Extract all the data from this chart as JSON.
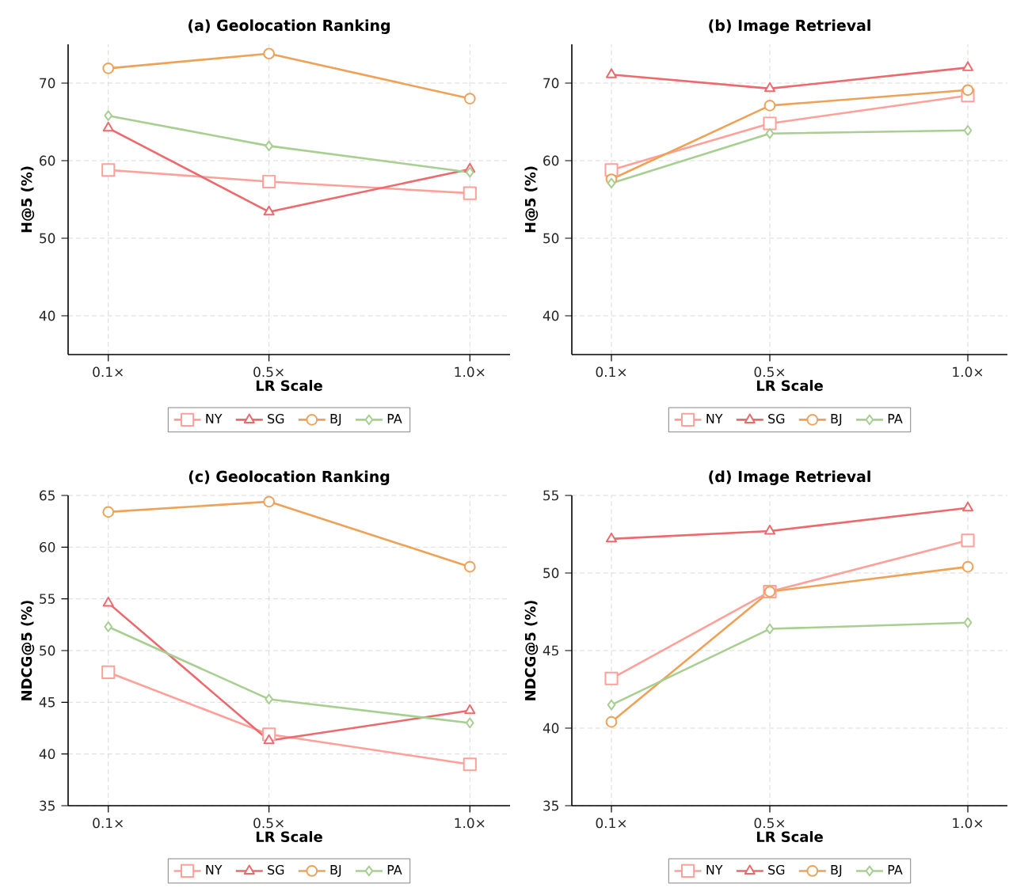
{
  "chart_data": [
    {
      "type": "line",
      "title": "(a) Geolocation Ranking",
      "xlabel": "LR Scale",
      "ylabel": "H@5 (%)",
      "x": [
        0.1,
        0.5,
        1.0
      ],
      "xlim": [
        0,
        1.1
      ],
      "xticks": [
        {
          "value": 0.1,
          "label": "0.1×"
        },
        {
          "value": 0.5,
          "label": "0.5×"
        },
        {
          "value": 1.0,
          "label": "1.0×"
        }
      ],
      "ylim": [
        35,
        75
      ],
      "yticks": [
        40,
        50,
        60,
        70
      ],
      "grid": true,
      "legend": "bottom",
      "series": [
        {
          "name": "NY",
          "color": "#ffa09a",
          "marker": "square",
          "values": [
            58.8,
            57.3,
            55.8
          ]
        },
        {
          "name": "SG",
          "color": "#ec6a6e",
          "marker": "triangle",
          "values": [
            64.2,
            53.4,
            58.9
          ]
        },
        {
          "name": "BJ",
          "color": "#eea257",
          "marker": "circle",
          "values": [
            71.9,
            73.8,
            68.0
          ]
        },
        {
          "name": "PA",
          "color": "#a8cf92",
          "marker": "diamond",
          "values": [
            65.8,
            61.9,
            58.5
          ]
        }
      ]
    },
    {
      "type": "line",
      "title": "(b) Image Retrieval",
      "xlabel": "LR Scale",
      "ylabel": "H@5 (%)",
      "x": [
        0.1,
        0.5,
        1.0
      ],
      "xlim": [
        0,
        1.1
      ],
      "xticks": [
        {
          "value": 0.1,
          "label": "0.1×"
        },
        {
          "value": 0.5,
          "label": "0.5×"
        },
        {
          "value": 1.0,
          "label": "1.0×"
        }
      ],
      "ylim": [
        35,
        75
      ],
      "yticks": [
        40,
        50,
        60,
        70
      ],
      "grid": true,
      "legend": "bottom",
      "series": [
        {
          "name": "NY",
          "color": "#ffa09a",
          "marker": "square",
          "values": [
            58.8,
            64.8,
            68.4
          ]
        },
        {
          "name": "SG",
          "color": "#ec6a6e",
          "marker": "triangle",
          "values": [
            71.1,
            69.3,
            72.0
          ]
        },
        {
          "name": "BJ",
          "color": "#eea257",
          "marker": "circle",
          "values": [
            57.6,
            67.1,
            69.1
          ]
        },
        {
          "name": "PA",
          "color": "#a8cf92",
          "marker": "diamond",
          "values": [
            57.1,
            63.5,
            63.9
          ]
        }
      ]
    },
    {
      "type": "line",
      "title": "(c) Geolocation Ranking",
      "xlabel": "LR Scale",
      "ylabel": "NDCG@5 (%)",
      "x": [
        0.1,
        0.5,
        1.0
      ],
      "xlim": [
        0,
        1.1
      ],
      "xticks": [
        {
          "value": 0.1,
          "label": "0.1×"
        },
        {
          "value": 0.5,
          "label": "0.5×"
        },
        {
          "value": 1.0,
          "label": "1.0×"
        }
      ],
      "ylim": [
        35,
        65
      ],
      "yticks": [
        35,
        40,
        45,
        50,
        55,
        60,
        65
      ],
      "grid": true,
      "legend": "bottom",
      "series": [
        {
          "name": "NY",
          "color": "#ffa09a",
          "marker": "square",
          "values": [
            47.9,
            41.9,
            39.0
          ]
        },
        {
          "name": "SG",
          "color": "#ec6a6e",
          "marker": "triangle",
          "values": [
            54.6,
            41.3,
            44.2
          ]
        },
        {
          "name": "BJ",
          "color": "#eea257",
          "marker": "circle",
          "values": [
            63.4,
            64.4,
            58.1
          ]
        },
        {
          "name": "PA",
          "color": "#a8cf92",
          "marker": "diamond",
          "values": [
            52.3,
            45.3,
            43.0
          ]
        }
      ]
    },
    {
      "type": "line",
      "title": "(d) Image Retrieval",
      "xlabel": "LR Scale",
      "ylabel": "NDCG@5 (%)",
      "x": [
        0.1,
        0.5,
        1.0
      ],
      "xlim": [
        0,
        1.1
      ],
      "xticks": [
        {
          "value": 0.1,
          "label": "0.1×"
        },
        {
          "value": 0.5,
          "label": "0.5×"
        },
        {
          "value": 1.0,
          "label": "1.0×"
        }
      ],
      "ylim": [
        35,
        55
      ],
      "yticks": [
        35,
        40,
        45,
        50,
        55
      ],
      "grid": true,
      "legend": "bottom",
      "series": [
        {
          "name": "NY",
          "color": "#ffa09a",
          "marker": "square",
          "values": [
            43.2,
            48.8,
            52.1
          ]
        },
        {
          "name": "SG",
          "color": "#ec6a6e",
          "marker": "triangle",
          "values": [
            52.2,
            52.7,
            54.2
          ]
        },
        {
          "name": "BJ",
          "color": "#eea257",
          "marker": "circle",
          "values": [
            40.4,
            48.8,
            50.4
          ]
        },
        {
          "name": "PA",
          "color": "#a8cf92",
          "marker": "diamond",
          "values": [
            41.5,
            46.4,
            46.8
          ]
        }
      ]
    }
  ]
}
